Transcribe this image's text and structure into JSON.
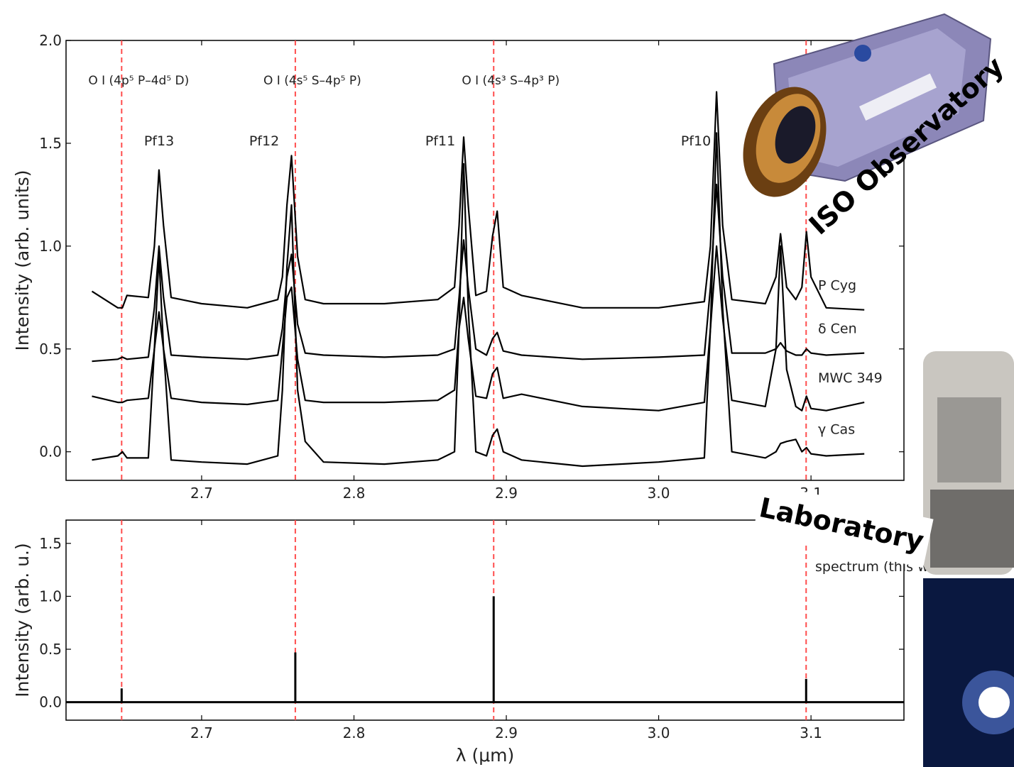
{
  "chart_data": [
    {
      "type": "line",
      "ylabel": "Intensity (arb. units)",
      "xlim": [
        2.611,
        3.161
      ],
      "ylim": [
        -0.139,
        2.0
      ],
      "xticks": [
        2.7,
        2.8,
        2.9,
        {
          "value": 3.0,
          "label": "3.0"
        },
        3.1
      ],
      "yticks": [
        {
          "value": 0,
          "label": "0.0"
        },
        0.5,
        {
          "value": 1,
          "label": "1.0"
        },
        1.5,
        {
          "value": 2,
          "label": "2.0"
        }
      ],
      "vlines": [
        2.6475,
        2.7615,
        2.8917,
        3.0968
      ],
      "vline_color": "#ff4d4d",
      "annotations": [
        "O I (4p⁵ P–4d⁵ D)",
        "O I (4s⁵ S–4p⁵ P)",
        "O I (4s³ S–4p³ P)"
      ],
      "peak_labels": [
        "Pf13",
        "Pf12",
        "Pf11",
        "Pf10"
      ],
      "x": [
        2.628,
        2.645,
        2.648,
        2.651,
        2.665,
        2.669,
        2.672,
        2.675,
        2.68,
        2.7,
        2.73,
        2.75,
        2.753,
        2.756,
        2.759,
        2.763,
        2.768,
        2.78,
        2.82,
        2.855,
        2.866,
        2.869,
        2.872,
        2.875,
        2.88,
        2.887,
        2.891,
        2.894,
        2.898,
        2.91,
        2.95,
        3.0,
        3.03,
        3.034,
        3.038,
        3.042,
        3.048,
        3.07,
        3.077,
        3.08,
        3.084,
        3.09,
        3.094,
        3.097,
        3.1,
        3.11,
        3.135
      ],
      "series": [
        {
          "name": "P Cyg",
          "color": "#000000",
          "values": [
            0.78,
            0.7,
            0.7,
            0.76,
            0.75,
            1.0,
            1.37,
            1.1,
            0.75,
            0.72,
            0.7,
            0.74,
            0.85,
            1.2,
            1.44,
            0.95,
            0.74,
            0.72,
            0.72,
            0.74,
            0.8,
            1.1,
            1.53,
            1.2,
            0.76,
            0.78,
            1.05,
            1.17,
            0.8,
            0.76,
            0.7,
            0.7,
            0.73,
            1.0,
            1.75,
            1.1,
            0.74,
            0.72,
            0.85,
            1.06,
            0.8,
            0.74,
            0.8,
            1.07,
            0.85,
            0.7,
            0.69
          ]
        },
        {
          "name": "δ Cen",
          "color": "#000000",
          "values": [
            0.44,
            0.45,
            0.46,
            0.45,
            0.46,
            0.7,
            1.0,
            0.75,
            0.47,
            0.46,
            0.45,
            0.47,
            0.6,
            0.85,
            0.96,
            0.62,
            0.48,
            0.47,
            0.46,
            0.47,
            0.5,
            0.75,
            1.03,
            0.8,
            0.5,
            0.47,
            0.55,
            0.58,
            0.49,
            0.47,
            0.45,
            0.46,
            0.47,
            0.8,
            1.3,
            0.85,
            0.48,
            0.48,
            0.5,
            0.53,
            0.49,
            0.47,
            0.47,
            0.5,
            0.48,
            0.47,
            0.48
          ]
        },
        {
          "name": "MWC 349",
          "color": "#000000",
          "values": [
            0.27,
            0.24,
            0.24,
            0.25,
            0.26,
            0.5,
            0.68,
            0.5,
            0.26,
            0.24,
            0.23,
            0.25,
            0.5,
            0.75,
            0.8,
            0.45,
            0.25,
            0.24,
            0.24,
            0.25,
            0.3,
            0.6,
            0.75,
            0.55,
            0.27,
            0.26,
            0.38,
            0.41,
            0.26,
            0.28,
            0.22,
            0.2,
            0.24,
            0.6,
            1.0,
            0.65,
            0.25,
            0.22,
            0.5,
            1.0,
            0.4,
            0.22,
            0.2,
            0.27,
            0.21,
            0.2,
            0.24
          ]
        },
        {
          "name": "γ Cas",
          "color": "#000000",
          "values": [
            -0.04,
            -0.02,
            0.0,
            -0.03,
            -0.03,
            0.5,
            0.95,
            0.5,
            -0.04,
            -0.05,
            -0.06,
            -0.02,
            0.3,
            0.9,
            1.2,
            0.3,
            0.05,
            -0.05,
            -0.06,
            -0.04,
            0.0,
            0.6,
            1.4,
            0.7,
            0.0,
            -0.02,
            0.08,
            0.11,
            0.0,
            -0.04,
            -0.07,
            -0.05,
            -0.03,
            0.6,
            1.55,
            0.7,
            0.0,
            -0.03,
            0.0,
            0.04,
            0.05,
            0.06,
            0.0,
            0.02,
            -0.01,
            -0.02,
            -0.01
          ]
        }
      ]
    },
    {
      "type": "stem",
      "ylabel": "Intensity (arb. u.)",
      "xlabel": "λ (μm)",
      "xlim": [
        2.611,
        3.161
      ],
      "ylim": [
        -0.17,
        1.72
      ],
      "xticks": [
        2.7,
        2.8,
        2.9,
        {
          "value": 3.0,
          "label": "3.0"
        },
        3.1
      ],
      "yticks": [
        {
          "value": 0,
          "label": "0.0"
        },
        0.5,
        {
          "value": 1,
          "label": "1.0"
        },
        1.5
      ],
      "vlines": [
        2.6475,
        2.7615,
        2.8917,
        3.0968
      ],
      "vline_color": "#ff4d4d",
      "x": [
        2.6475,
        2.7615,
        2.8917,
        3.0968
      ],
      "series": [
        {
          "name": "spectrum (this work)",
          "color": "#000000",
          "values": [
            0.13,
            0.47,
            1.0,
            0.22
          ]
        }
      ]
    }
  ],
  "labels": {
    "iso": "ISO Observatory",
    "lab": "Laboratory"
  }
}
